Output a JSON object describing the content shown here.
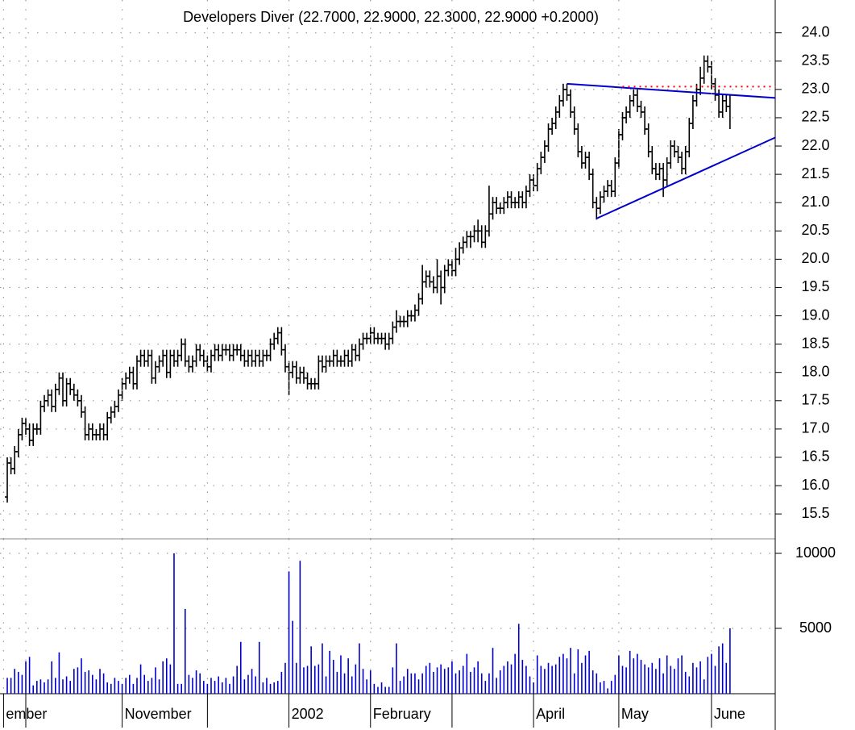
{
  "chart_data": [
    {
      "type": "ohlc",
      "title": "Developers Diver (22.7000, 22.9000, 22.3000, 22.9000 +0.2000)",
      "color": "#000000",
      "open": [
        15.8,
        16.4,
        16.3,
        16.6,
        16.9,
        17.1,
        17.0,
        16.8,
        17.0,
        17.0,
        17.4,
        17.5,
        17.6,
        17.4,
        17.7,
        17.9,
        17.5,
        17.8,
        17.7,
        17.6,
        17.5,
        17.3,
        16.9,
        17.0,
        16.9,
        16.9,
        17.0,
        16.9,
        17.2,
        17.3,
        17.4,
        17.6,
        17.8,
        17.9,
        18.0,
        17.8,
        18.2,
        18.3,
        18.2,
        18.3,
        17.9,
        18.1,
        18.2,
        18.3,
        18.0,
        18.3,
        18.2,
        18.3,
        18.5,
        18.2,
        18.1,
        18.2,
        18.4,
        18.3,
        18.2,
        18.1,
        18.3,
        18.4,
        18.3,
        18.4,
        18.4,
        18.3,
        18.4,
        18.4,
        18.3,
        18.2,
        18.3,
        18.2,
        18.3,
        18.2,
        18.3,
        18.3,
        18.5,
        18.6,
        18.7,
        18.4,
        18.1,
        18.0,
        18.1,
        17.9,
        18.0,
        17.9,
        17.8,
        17.8,
        17.8,
        18.2,
        18.1,
        18.2,
        18.2,
        18.3,
        18.2,
        18.2,
        18.3,
        18.2,
        18.4,
        18.3,
        18.5,
        18.6,
        18.6,
        18.7,
        18.6,
        18.6,
        18.6,
        18.5,
        18.6,
        18.8,
        18.9,
        18.9,
        18.9,
        19.0,
        19.0,
        19.1,
        19.3,
        19.6,
        19.7,
        19.6,
        19.5,
        19.7,
        19.5,
        19.8,
        19.9,
        19.8,
        20.0,
        20.2,
        20.3,
        20.4,
        20.4,
        20.5,
        20.5,
        20.3,
        20.5,
        20.8,
        21.0,
        20.9,
        20.9,
        21.0,
        21.1,
        21.0,
        21.0,
        21.1,
        21.0,
        21.2,
        21.4,
        21.3,
        21.6,
        21.8,
        22.0,
        22.3,
        22.4,
        22.6,
        22.8,
        23.0,
        22.9,
        22.6,
        22.3,
        21.9,
        21.7,
        21.8,
        21.5,
        21.0,
        20.9,
        21.1,
        21.2,
        21.3,
        21.2,
        21.7,
        22.2,
        22.5,
        22.6,
        22.8,
        22.9,
        22.7,
        22.6,
        22.3,
        21.9,
        21.6,
        21.5,
        21.6,
        21.4,
        21.7,
        22.0,
        21.9,
        21.8,
        21.6,
        21.9,
        22.4,
        22.8,
        23.0,
        23.2,
        23.5,
        23.4,
        23.1,
        22.9,
        22.6,
        22.8,
        22.7
      ],
      "high": [
        16.5,
        16.5,
        16.7,
        17.0,
        17.2,
        17.2,
        17.1,
        17.1,
        17.1,
        17.5,
        17.6,
        17.7,
        17.7,
        17.8,
        18.0,
        18.0,
        17.9,
        17.9,
        17.8,
        17.7,
        17.6,
        17.4,
        17.1,
        17.1,
        17.0,
        17.1,
        17.1,
        17.3,
        17.4,
        17.5,
        17.7,
        17.9,
        18.0,
        18.1,
        18.1,
        18.3,
        18.4,
        18.4,
        18.4,
        18.4,
        18.2,
        18.3,
        18.4,
        18.4,
        18.4,
        18.4,
        18.4,
        18.6,
        18.6,
        18.3,
        18.3,
        18.5,
        18.5,
        18.4,
        18.3,
        18.4,
        18.5,
        18.5,
        18.5,
        18.5,
        18.5,
        18.5,
        18.5,
        18.5,
        18.4,
        18.4,
        18.4,
        18.4,
        18.4,
        18.4,
        18.4,
        18.6,
        18.7,
        18.8,
        18.8,
        18.5,
        18.2,
        18.2,
        18.2,
        18.1,
        18.1,
        18.0,
        17.9,
        17.9,
        18.3,
        18.3,
        18.3,
        18.3,
        18.4,
        18.4,
        18.3,
        18.4,
        18.4,
        18.5,
        18.5,
        18.6,
        18.7,
        18.7,
        18.8,
        18.8,
        18.7,
        18.7,
        18.7,
        18.7,
        18.9,
        19.1,
        19.0,
        19.0,
        19.1,
        19.1,
        19.2,
        19.4,
        19.9,
        19.8,
        19.8,
        19.7,
        20.0,
        19.8,
        19.9,
        20.0,
        20.0,
        20.2,
        20.3,
        20.4,
        20.5,
        20.5,
        20.6,
        20.7,
        20.6,
        20.6,
        21.3,
        21.1,
        21.1,
        21.0,
        21.1,
        21.2,
        21.2,
        21.1,
        21.2,
        21.2,
        21.3,
        21.5,
        21.5,
        21.7,
        21.9,
        22.1,
        22.4,
        22.5,
        22.7,
        22.9,
        23.1,
        23.1,
        23.0,
        22.7,
        22.4,
        22.0,
        21.9,
        21.9,
        21.6,
        21.1,
        21.2,
        21.3,
        21.4,
        21.4,
        21.8,
        22.3,
        22.6,
        22.7,
        22.9,
        23.0,
        23.0,
        22.8,
        22.7,
        22.4,
        22.0,
        21.7,
        21.7,
        21.7,
        21.8,
        22.1,
        22.1,
        22.0,
        21.9,
        22.0,
        22.5,
        22.9,
        23.1,
        23.4,
        23.6,
        23.6,
        23.5,
        23.2,
        23.0,
        22.9,
        22.9,
        22.9
      ],
      "low": [
        15.7,
        16.2,
        16.2,
        16.5,
        16.8,
        16.9,
        16.7,
        16.7,
        16.9,
        16.9,
        17.3,
        17.4,
        17.3,
        17.3,
        17.6,
        17.4,
        17.4,
        17.6,
        17.5,
        17.4,
        17.2,
        16.8,
        16.8,
        16.8,
        16.8,
        16.8,
        16.8,
        16.8,
        17.1,
        17.2,
        17.3,
        17.5,
        17.7,
        17.8,
        17.7,
        17.7,
        18.1,
        18.1,
        18.1,
        17.8,
        17.8,
        18.0,
        18.1,
        17.9,
        17.9,
        18.1,
        18.1,
        18.2,
        18.1,
        18.0,
        18.0,
        18.1,
        18.2,
        18.1,
        18.0,
        18.0,
        18.2,
        18.2,
        18.2,
        18.3,
        18.2,
        18.2,
        18.3,
        18.2,
        18.1,
        18.1,
        18.1,
        18.1,
        18.1,
        18.1,
        18.2,
        18.2,
        18.4,
        18.5,
        18.3,
        18.0,
        17.6,
        17.9,
        17.8,
        17.8,
        17.8,
        17.7,
        17.7,
        17.7,
        17.7,
        18.0,
        18.0,
        18.1,
        18.1,
        18.1,
        18.1,
        18.1,
        18.1,
        18.1,
        18.2,
        18.2,
        18.4,
        18.5,
        18.5,
        18.5,
        18.5,
        18.5,
        18.4,
        18.4,
        18.5,
        18.7,
        18.8,
        18.8,
        18.8,
        18.9,
        18.9,
        19.0,
        19.2,
        19.5,
        19.5,
        19.4,
        19.4,
        19.2,
        19.4,
        19.7,
        19.7,
        19.7,
        19.9,
        20.1,
        20.2,
        20.2,
        20.3,
        20.3,
        20.2,
        20.2,
        20.4,
        20.7,
        20.8,
        20.8,
        20.8,
        20.9,
        20.9,
        20.9,
        20.9,
        20.9,
        20.9,
        21.1,
        21.2,
        21.2,
        21.5,
        21.7,
        21.9,
        22.2,
        22.3,
        22.5,
        22.7,
        22.8,
        22.5,
        22.2,
        21.8,
        21.6,
        21.6,
        21.4,
        20.9,
        20.7,
        20.8,
        21.0,
        21.1,
        21.1,
        21.1,
        21.6,
        22.1,
        22.4,
        22.5,
        22.7,
        22.6,
        22.5,
        22.2,
        21.8,
        21.5,
        21.4,
        21.4,
        21.1,
        21.3,
        21.6,
        21.8,
        21.7,
        21.5,
        21.5,
        21.8,
        22.3,
        22.7,
        22.9,
        23.1,
        23.3,
        23.0,
        22.8,
        22.5,
        22.5,
        22.6,
        22.3
      ],
      "close": [
        16.4,
        16.3,
        16.6,
        16.9,
        17.1,
        17.0,
        16.8,
        17.0,
        17.0,
        17.4,
        17.5,
        17.6,
        17.4,
        17.7,
        17.9,
        17.5,
        17.8,
        17.7,
        17.6,
        17.5,
        17.3,
        16.9,
        17.0,
        16.9,
        16.9,
        17.0,
        16.9,
        17.2,
        17.3,
        17.4,
        17.6,
        17.8,
        17.9,
        18.0,
        17.8,
        18.2,
        18.3,
        18.2,
        18.3,
        17.9,
        18.1,
        18.2,
        18.3,
        18.0,
        18.3,
        18.2,
        18.3,
        18.5,
        18.2,
        18.1,
        18.2,
        18.4,
        18.3,
        18.2,
        18.1,
        18.3,
        18.4,
        18.3,
        18.4,
        18.4,
        18.3,
        18.4,
        18.4,
        18.3,
        18.2,
        18.3,
        18.2,
        18.3,
        18.2,
        18.3,
        18.3,
        18.5,
        18.6,
        18.7,
        18.4,
        18.1,
        18.0,
        18.1,
        17.9,
        18.0,
        17.9,
        17.8,
        17.8,
        17.8,
        18.2,
        18.1,
        18.2,
        18.2,
        18.3,
        18.2,
        18.2,
        18.3,
        18.2,
        18.4,
        18.3,
        18.5,
        18.6,
        18.6,
        18.7,
        18.6,
        18.6,
        18.6,
        18.5,
        18.6,
        18.8,
        18.9,
        18.9,
        18.9,
        19.0,
        19.0,
        19.1,
        19.3,
        19.6,
        19.7,
        19.6,
        19.5,
        19.7,
        19.5,
        19.8,
        19.9,
        19.8,
        20.0,
        20.2,
        20.3,
        20.4,
        20.4,
        20.5,
        20.5,
        20.3,
        20.5,
        20.8,
        21.0,
        20.9,
        20.9,
        21.0,
        21.1,
        21.0,
        21.0,
        21.1,
        21.0,
        21.2,
        21.4,
        21.3,
        21.6,
        21.8,
        22.0,
        22.3,
        22.4,
        22.6,
        22.8,
        23.0,
        22.9,
        22.6,
        22.3,
        21.9,
        21.7,
        21.8,
        21.5,
        21.0,
        20.9,
        21.1,
        21.2,
        21.3,
        21.2,
        21.7,
        22.2,
        22.5,
        22.6,
        22.8,
        22.9,
        22.7,
        22.6,
        22.3,
        21.9,
        21.6,
        21.5,
        21.6,
        21.4,
        21.7,
        22.0,
        21.9,
        21.8,
        21.6,
        21.9,
        22.4,
        22.8,
        23.0,
        23.2,
        23.5,
        23.4,
        23.1,
        22.9,
        22.6,
        22.8,
        22.7,
        22.9
      ],
      "xlim": [
        -1.96,
        207.2
      ],
      "ylim": [
        15.06,
        24.58
      ],
      "yticks": [
        {
          "value": 15.5,
          "label": "15.5"
        },
        {
          "value": 16,
          "label": "16.0"
        },
        16.5,
        {
          "value": 17,
          "label": "17.0"
        },
        17.5,
        {
          "value": 18,
          "label": "18.0"
        },
        18.5,
        {
          "value": 19,
          "label": "19.0"
        },
        19.5,
        {
          "value": 20,
          "label": "20.0"
        },
        20.5,
        {
          "value": 21,
          "label": "21.0"
        },
        21.5,
        {
          "value": 22,
          "label": "22.0"
        },
        22.5,
        {
          "value": 23,
          "label": "23.0"
        },
        23.5,
        {
          "value": 24,
          "label": "24.0"
        }
      ],
      "grid": true,
      "trendlines": [
        {
          "x": [
            151,
            207.2
          ],
          "y": [
            23.1,
            22.85
          ],
          "color": "#0000cc",
          "style": "solid"
        },
        {
          "x": [
            159,
            207.2
          ],
          "y": [
            20.72,
            22.15
          ],
          "color": "#0000cc",
          "style": "solid"
        },
        {
          "x": [
            166,
            207.2
          ],
          "y": [
            23.05,
            23.05
          ],
          "color": "#ff0000",
          "style": "dotted"
        }
      ]
    },
    {
      "type": "bar",
      "color": "#0000cc",
      "values": [
        1700,
        1700,
        2300,
        2100,
        1900,
        2800,
        3100,
        1200,
        1500,
        1600,
        1400,
        1600,
        2800,
        1700,
        3400,
        1600,
        1800,
        1500,
        2300,
        2400,
        3000,
        2100,
        2200,
        1900,
        1600,
        2300,
        2000,
        1400,
        1300,
        1700,
        1500,
        1300,
        1700,
        1900,
        1300,
        1700,
        2600,
        1900,
        1500,
        1700,
        2400,
        1600,
        2800,
        3000,
        2600,
        10000,
        1300,
        1300,
        6300,
        1900,
        1700,
        2200,
        2000,
        1500,
        1300,
        1700,
        1500,
        1800,
        1400,
        1700,
        1300,
        1800,
        2500,
        4100,
        1600,
        1900,
        2300,
        1800,
        4100,
        1400,
        1700,
        1300,
        1400,
        1500,
        2100,
        2700,
        8800,
        5500,
        2700,
        9500,
        2400,
        2500,
        3800,
        2500,
        2600,
        4000,
        1800,
        3500,
        2900,
        2100,
        3200,
        2000,
        3000,
        1800,
        2600,
        4000,
        2300,
        1600,
        2200,
        1300,
        1100,
        1400,
        1100,
        1100,
        2400,
        4000,
        1500,
        1800,
        2300,
        2000,
        2000,
        1600,
        2000,
        2500,
        2700,
        2100,
        2400,
        2600,
        2300,
        2400,
        2800,
        2000,
        2200,
        2500,
        3300,
        2100,
        2400,
        2800,
        2000,
        1500,
        2000,
        3700,
        1700,
        2200,
        2500,
        2800,
        2600,
        3300,
        5300,
        2900,
        2500,
        1800,
        1400,
        3200,
        2500,
        2300,
        2700,
        2500,
        2600,
        3100,
        3300,
        3000,
        3700,
        2000,
        3600,
        2700,
        3200,
        3500,
        2200,
        2000,
        1400,
        1500,
        1000,
        1500,
        1900,
        3200,
        2500,
        2400,
        3500,
        3000,
        3300,
        2900,
        2600,
        2400,
        2700,
        2300,
        3000,
        2000,
        3200,
        2500,
        2300,
        3000,
        3200,
        2100,
        1800,
        2700,
        2400,
        2800,
        1600,
        3100,
        3300,
        2500,
        3800,
        4000,
        2700,
        5000
      ],
      "xlim": [
        -1.96,
        207.2
      ],
      "ylim": [
        645,
        10968
      ],
      "yticks": [
        5000,
        10000
      ],
      "grid": true,
      "xticks": [
        {
          "value": -1,
          "label": "ember"
        },
        {
          "value": 5,
          "label": null
        },
        {
          "value": 31,
          "label": "November"
        },
        {
          "value": 54,
          "label": null
        },
        {
          "value": 76,
          "label": "2002"
        },
        {
          "value": 98,
          "label": "February"
        },
        {
          "value": 120,
          "label": null
        },
        {
          "value": 142,
          "label": "April"
        },
        {
          "value": 165,
          "label": "May"
        },
        {
          "value": 190,
          "label": "June"
        }
      ]
    }
  ]
}
